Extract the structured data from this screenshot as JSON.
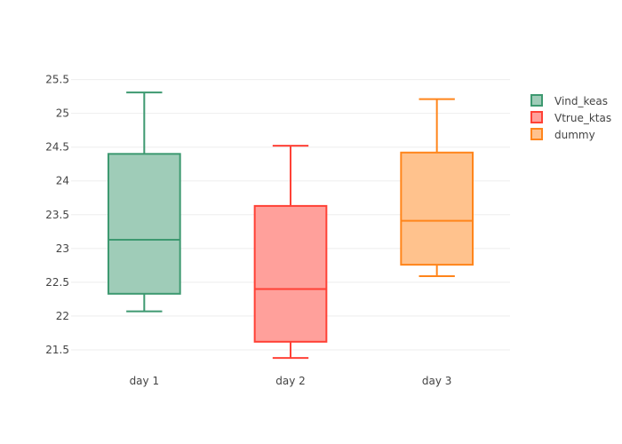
{
  "chart_data": {
    "type": "box",
    "categories": [
      "day 1",
      "day 2",
      "day 3"
    ],
    "ylim": [
      21.25,
      25.6
    ],
    "yticks": [
      21.5,
      22,
      22.5,
      23,
      23.5,
      24,
      24.5,
      25,
      25.5
    ],
    "ytick_labels": [
      "21.5",
      "22",
      "22.5",
      "23",
      "23.5",
      "24",
      "24.5",
      "25",
      "25.5"
    ],
    "grid": true,
    "legend_position": "top-right",
    "series": [
      {
        "name": "Vind_keas",
        "category": "day 1",
        "min": 22.07,
        "q1": 22.33,
        "median": 23.13,
        "q3": 24.4,
        "max": 25.31,
        "color": "#3d9970",
        "fill": "#9fccb8"
      },
      {
        "name": "Vtrue_ktas",
        "category": "day 2",
        "min": 21.38,
        "q1": 21.62,
        "median": 22.4,
        "q3": 23.63,
        "max": 24.52,
        "color": "#ff4136",
        "fill": "#ffa09b"
      },
      {
        "name": "dummy",
        "category": "day 3",
        "min": 22.59,
        "q1": 22.76,
        "median": 23.41,
        "q3": 24.42,
        "max": 25.21,
        "color": "#ff851b",
        "fill": "#ffc28d"
      }
    ]
  }
}
